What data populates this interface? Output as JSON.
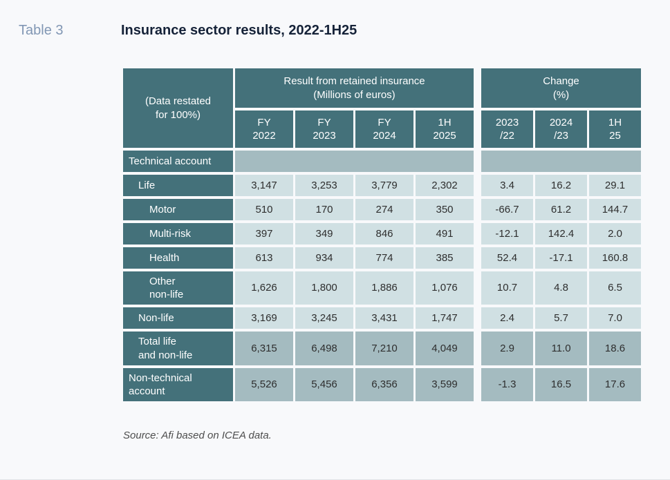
{
  "header": {
    "table_label": "Table 3",
    "title": "Insurance sector results, 2022-1H25"
  },
  "table": {
    "corner": "(Data restated\nfor 100%)",
    "result_group": "Result from retained insurance\n(Millions of euros)",
    "change_group": "Change\n(%)",
    "result_cols": [
      "FY\n2022",
      "FY\n2023",
      "FY\n2024",
      "1H\n2025"
    ],
    "change_cols": [
      "2023\n/22",
      "2024\n/23",
      "1H\n25"
    ],
    "section_row": {
      "label": "Technical account"
    },
    "rows": [
      {
        "label": "Life",
        "values": [
          "3,147",
          "3,253",
          "3,779",
          "2,302"
        ],
        "changes": [
          "3.4",
          "16.2",
          "29.1"
        ]
      },
      {
        "label": "Motor",
        "values": [
          "510",
          "170",
          "274",
          "350"
        ],
        "changes": [
          "-66.7",
          "61.2",
          "144.7"
        ]
      },
      {
        "label": "Multi-risk",
        "values": [
          "397",
          "349",
          "846",
          "491"
        ],
        "changes": [
          "-12.1",
          "142.4",
          "2.0"
        ]
      },
      {
        "label": "Health",
        "values": [
          "613",
          "934",
          "774",
          "385"
        ],
        "changes": [
          "52.4",
          "-17.1",
          "160.8"
        ]
      },
      {
        "label": "Other\nnon-life",
        "values": [
          "1,626",
          "1,800",
          "1,886",
          "1,076"
        ],
        "changes": [
          "10.7",
          "4.8",
          "6.5"
        ]
      },
      {
        "label": "Non-life",
        "values": [
          "3,169",
          "3,245",
          "3,431",
          "1,747"
        ],
        "changes": [
          "2.4",
          "5.7",
          "7.0"
        ]
      },
      {
        "label": "Total life\nand non-life",
        "values": [
          "6,315",
          "6,498",
          "7,210",
          "4,049"
        ],
        "changes": [
          "2.9",
          "11.0",
          "18.6"
        ]
      },
      {
        "label": "Non-technical\naccount",
        "values": [
          "5,526",
          "5,456",
          "6,356",
          "3,599"
        ],
        "changes": [
          "-1.3",
          "16.5",
          "17.6"
        ]
      }
    ]
  },
  "footer": {
    "source": "Source: Afi based on ICEA data."
  },
  "colors": {
    "header_teal": "#44717a",
    "light_cell": "#d0e0e3",
    "mid_cell": "#a4bbc0",
    "title_navy": "#152238",
    "table_label_blue": "#8197b4",
    "page_background": "#f8f9fb"
  }
}
